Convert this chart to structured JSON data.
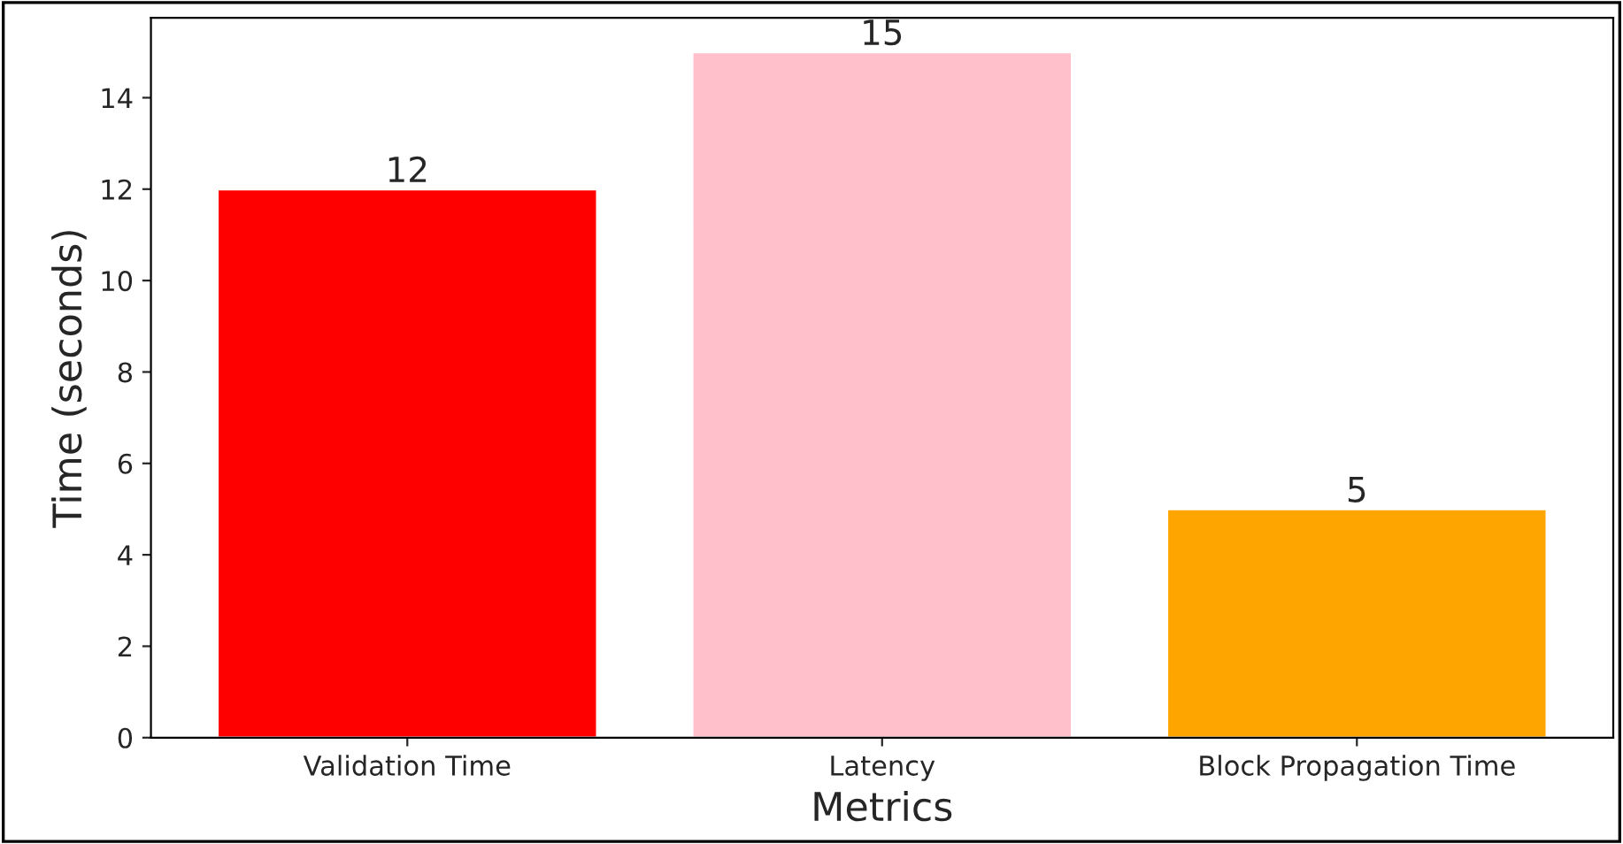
{
  "chart_data": {
    "type": "bar",
    "xlabel": "Metrics",
    "ylabel": "Time (seconds)",
    "categories": [
      "Validation Time",
      "Latency",
      "Block Propagation Time"
    ],
    "values": [
      12,
      15,
      5
    ],
    "colors": [
      "#ff0000",
      "#ffc0cb",
      "#ffa500"
    ],
    "ylim": [
      0,
      15.75
    ],
    "yticks": [
      0,
      2,
      4,
      6,
      8,
      10,
      12,
      14
    ],
    "data_labels": true,
    "grid": false
  }
}
